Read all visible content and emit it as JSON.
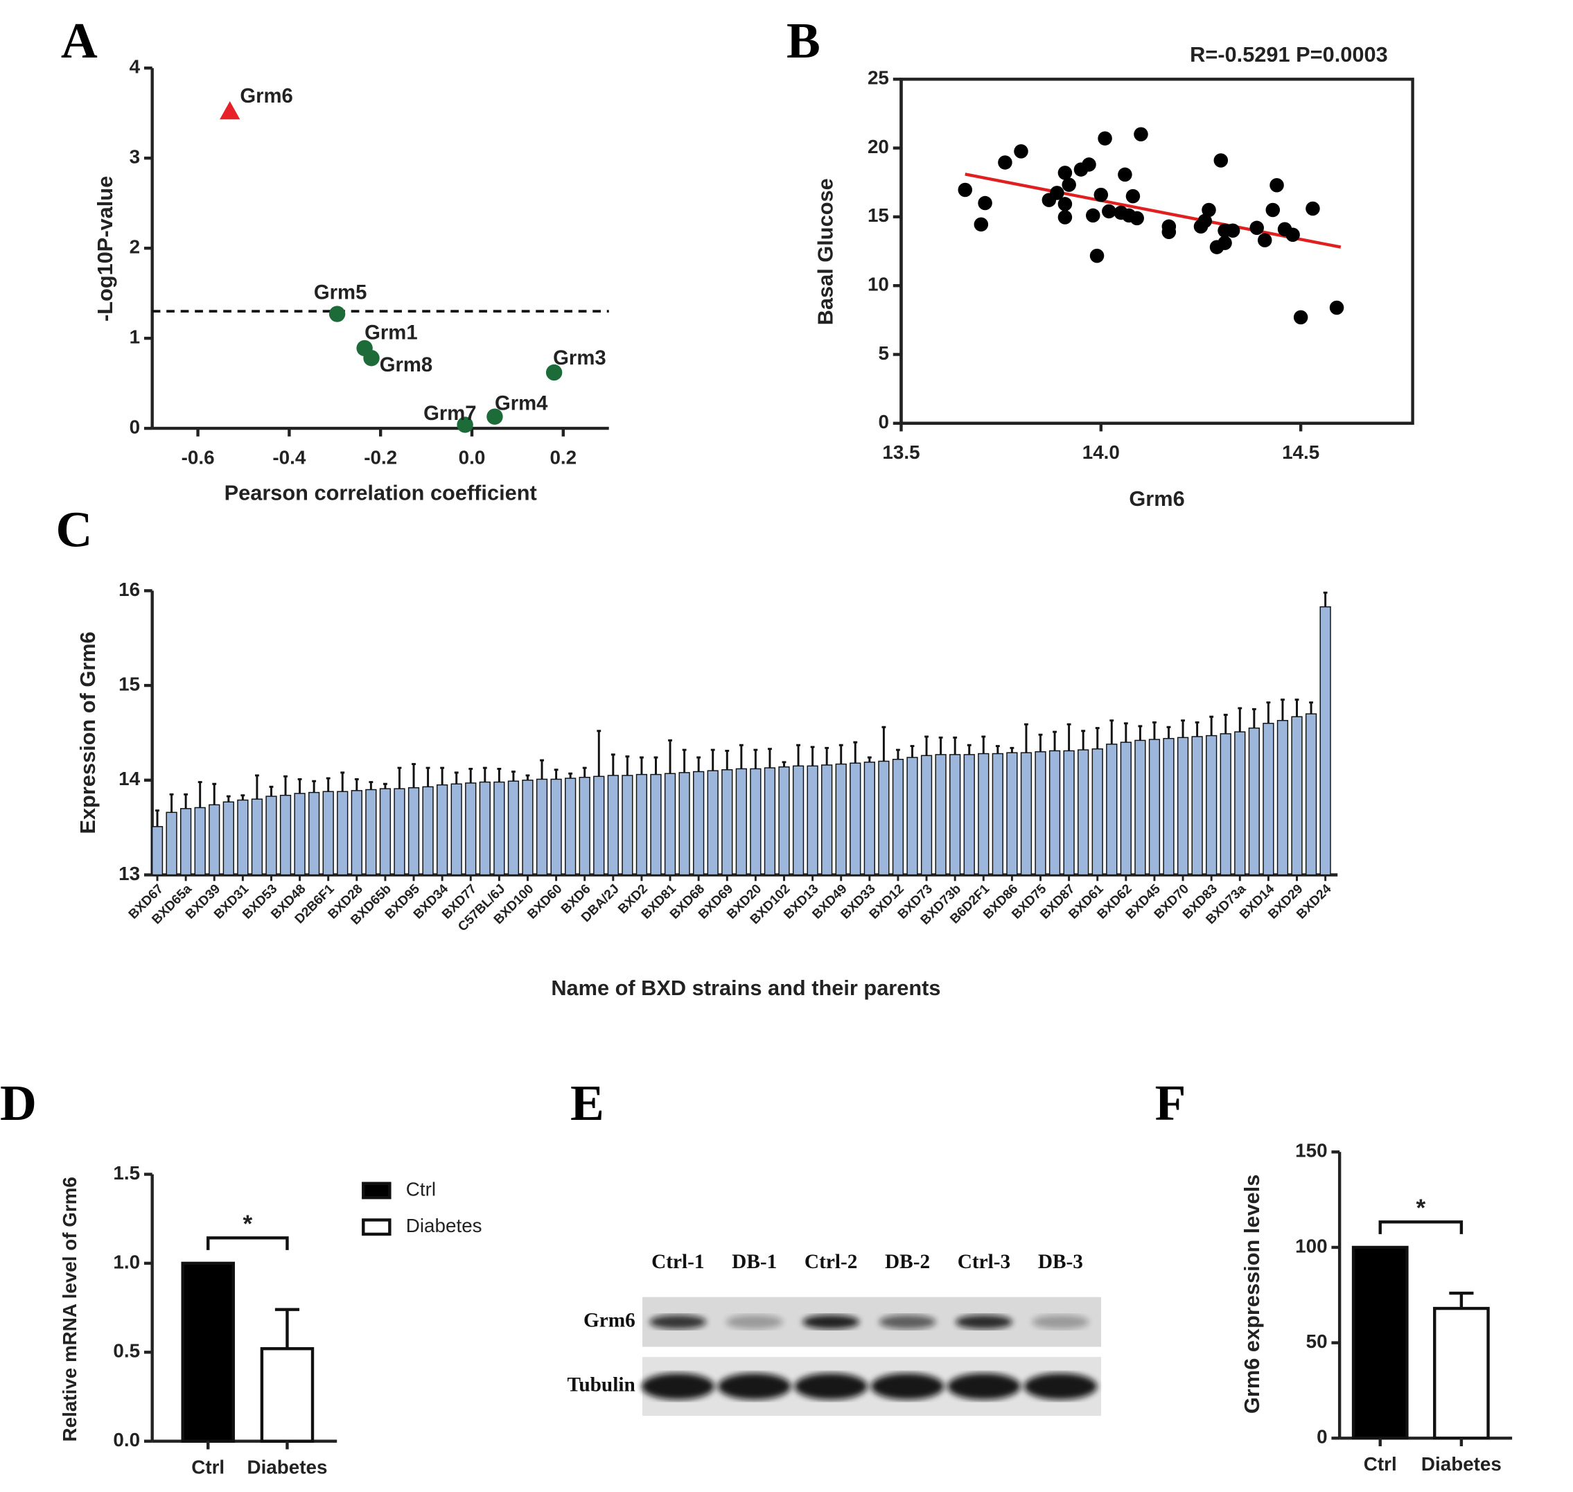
{
  "chart_data": [
    {
      "type": "scatter",
      "panel": "A",
      "x": [
        -0.53,
        -0.295,
        -0.235,
        -0.22,
        0.18,
        0.05,
        -0.015
      ],
      "y": [
        3.52,
        1.27,
        0.89,
        0.78,
        0.62,
        0.13,
        0.04
      ],
      "labels": [
        "Grm6",
        "Grm5",
        "Grm1",
        "Grm8",
        "Grm3",
        "Grm4",
        "Grm7"
      ],
      "markers": [
        "triangle",
        "circle",
        "circle",
        "circle",
        "circle",
        "circle",
        "circle"
      ],
      "colors": [
        "#e8202a",
        "#1e6b3a",
        "#1e6b3a",
        "#1e6b3a",
        "#1e6b3a",
        "#1e6b3a",
        "#1e6b3a"
      ],
      "label_color": "#2b4ea2",
      "threshold": 1.3,
      "xlim": [
        -0.7,
        0.3
      ],
      "xticks": [
        -0.6,
        -0.4,
        -0.2,
        {
          "value": 0,
          "label": "0.0"
        },
        0.2
      ],
      "ylim": [
        0,
        4
      ],
      "yticks": [
        0,
        1,
        2,
        3,
        4
      ],
      "x_label": "Pearson correlation coefficient",
      "y_label": "-Log10P-value"
    },
    {
      "type": "scatter",
      "panel": "B",
      "annotation": "R=-0.5291 P=0.0003",
      "x": [
        13.66,
        13.7,
        13.71,
        13.76,
        13.8,
        13.87,
        13.89,
        13.91,
        13.92,
        13.91,
        13.91,
        13.95,
        13.97,
        13.98,
        13.99,
        14.0,
        14.01,
        14.02,
        14.06,
        14.05,
        14.07,
        14.08,
        14.09,
        14.1,
        14.17,
        14.17,
        14.25,
        14.26,
        14.27,
        14.29,
        14.31,
        14.3,
        14.31,
        14.33,
        14.39,
        14.41,
        14.43,
        14.44,
        14.46,
        14.48,
        14.5,
        14.53,
        14.59
      ],
      "y": [
        16.96,
        14.45,
        16.0,
        18.95,
        19.76,
        16.22,
        16.74,
        18.2,
        17.33,
        15.93,
        14.97,
        18.44,
        18.8,
        15.1,
        12.17,
        16.6,
        20.7,
        15.4,
        18.07,
        15.3,
        15.1,
        16.5,
        14.9,
        21.0,
        14.3,
        13.9,
        14.3,
        14.7,
        15.5,
        12.8,
        13.1,
        19.1,
        14.0,
        14.0,
        14.2,
        13.3,
        15.5,
        17.3,
        14.1,
        13.7,
        7.7,
        15.6,
        8.4
      ],
      "color": "#000000",
      "trend": {
        "x": [
          13.66,
          14.6
        ],
        "y": [
          18.1,
          12.8
        ],
        "color": "#e02020"
      },
      "xlim": [
        13.5,
        14.78
      ],
      "xticks": [
        13.5,
        {
          "value": 14,
          "label": "14.0"
        },
        14.5
      ],
      "ylim": [
        0,
        25
      ],
      "yticks": [
        0,
        5,
        10,
        15,
        20,
        25
      ],
      "x_label": "Grm6",
      "y_label": "Basal Glucose"
    },
    {
      "type": "bar",
      "panel": "C",
      "categories": [
        "BXD67",
        null,
        "BXD65a",
        null,
        "BXD39",
        null,
        "BXD31",
        null,
        "BXD53",
        null,
        "BXD48",
        null,
        "D2B6F1",
        null,
        "BXD28",
        null,
        "BXD65b",
        null,
        "BXD95",
        null,
        "BXD34",
        null,
        "BXD77",
        null,
        "C57BL/6J",
        null,
        "BXD100",
        null,
        "BXD60",
        null,
        "BXD6",
        null,
        "DBA/2J",
        null,
        "BXD2",
        null,
        "BXD81",
        null,
        "BXD68",
        null,
        "BXD69",
        null,
        "BXD20",
        null,
        "BXD102",
        null,
        "BXD13",
        null,
        "BXD49",
        null,
        "BXD33",
        null,
        "BXD12",
        null,
        "BXD73",
        null,
        "BXD73b",
        null,
        "B6D2F1",
        null,
        "BXD86",
        null,
        "BXD75",
        null,
        "BXD87",
        null,
        "BXD61",
        null,
        "BXD62",
        null,
        "BXD45",
        null,
        "BXD70",
        null,
        "BXD83",
        null,
        "BXD73a",
        null,
        "BXD14",
        null,
        "BXD29",
        null,
        "BXD24"
      ],
      "values": [
        13.51,
        13.66,
        13.7,
        13.71,
        13.74,
        13.77,
        13.79,
        13.8,
        13.83,
        13.84,
        13.86,
        13.87,
        13.88,
        13.88,
        13.89,
        13.9,
        13.91,
        13.91,
        13.92,
        13.93,
        13.95,
        13.96,
        13.97,
        13.98,
        13.98,
        13.99,
        14.0,
        14.01,
        14.01,
        14.02,
        14.03,
        14.04,
        14.05,
        14.05,
        14.06,
        14.06,
        14.07,
        14.08,
        14.09,
        14.1,
        14.11,
        14.12,
        14.12,
        14.13,
        14.14,
        14.15,
        14.15,
        14.16,
        14.17,
        14.18,
        14.19,
        14.2,
        14.22,
        14.24,
        14.26,
        14.27,
        14.27,
        14.27,
        14.28,
        14.28,
        14.29,
        14.29,
        14.3,
        14.31,
        14.31,
        14.32,
        14.33,
        14.38,
        14.4,
        14.42,
        14.43,
        14.44,
        14.45,
        14.46,
        14.47,
        14.49,
        14.51,
        14.55,
        14.6,
        14.63,
        14.67,
        14.7,
        15.83
      ],
      "errors": [
        0.17,
        0.19,
        0.15,
        0.27,
        0.22,
        0.06,
        0.05,
        0.25,
        0.1,
        0.2,
        0.15,
        0.12,
        0.14,
        0.2,
        0.12,
        0.08,
        0.05,
        0.22,
        0.25,
        0.2,
        0.18,
        0.12,
        0.15,
        0.15,
        0.14,
        0.1,
        0.05,
        0.2,
        0.1,
        0.05,
        0.1,
        0.48,
        0.22,
        0.2,
        0.18,
        0.18,
        0.35,
        0.24,
        0.15,
        0.22,
        0.2,
        0.25,
        0.2,
        0.2,
        0.05,
        0.22,
        0.2,
        0.18,
        0.2,
        0.22,
        0.05,
        0.36,
        0.1,
        0.12,
        0.2,
        0.18,
        0.18,
        0.1,
        0.18,
        0.08,
        0.05,
        0.3,
        0.18,
        0.2,
        0.28,
        0.2,
        0.22,
        0.25,
        0.2,
        0.15,
        0.18,
        0.12,
        0.18,
        0.15,
        0.2,
        0.2,
        0.25,
        0.2,
        0.22,
        0.22,
        0.18,
        0.12,
        0.15
      ],
      "color": "#9db7dc",
      "ylim": [
        13,
        16
      ],
      "yticks": [
        13,
        14,
        15,
        16
      ],
      "x_label": "Name of BXD strains and their parents",
      "y_label": "Expression of Grm6"
    },
    {
      "type": "bar",
      "panel": "D",
      "categories": [
        "Ctrl",
        "Diabetes"
      ],
      "values": [
        1,
        0.52
      ],
      "errors": [
        null,
        0.22
      ],
      "colors": [
        "#000000",
        "#ffffff"
      ],
      "legend": true,
      "significance": "*",
      "ylim": [
        0,
        1.5
      ],
      "yticks": [
        {
          "value": 0,
          "label": "0.0"
        },
        0.5,
        {
          "value": 1,
          "label": "1.0"
        },
        1.5
      ],
      "y_label": "Relative mRNA level of Grm6"
    },
    {
      "type": "bar",
      "panel": "F",
      "categories": [
        "Ctrl",
        "Diabetes"
      ],
      "values": [
        100,
        68
      ],
      "errors": [
        null,
        8
      ],
      "colors": [
        "#000000",
        "#ffffff"
      ],
      "significance": "*",
      "ylim": [
        0,
        150
      ],
      "yticks": [
        0,
        50,
        100,
        150
      ],
      "y_label": "Grm6 expression levels"
    }
  ],
  "blot": {
    "panel": "E",
    "lanes": [
      "Ctrl-1",
      "DB-1",
      "Ctrl-2",
      "DB-2",
      "Ctrl-3",
      "DB-3"
    ],
    "rows": [
      "Grm6",
      "Tubulin"
    ]
  }
}
